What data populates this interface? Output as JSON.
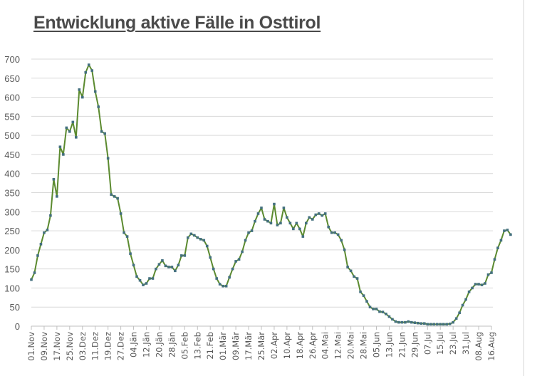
{
  "title": "Entwicklung aktive Fälle in Osttirol",
  "colors": {
    "line": "#5b8a2f",
    "marker": "#44707f",
    "grid": "#d9d9d9",
    "axis": "#bfbfbf",
    "text": "#595959"
  },
  "chart_data": {
    "type": "line",
    "title": "Entwicklung aktive Fälle in Osttirol",
    "xlabel": "",
    "ylabel": "",
    "ylim": [
      0,
      700
    ],
    "yticks": [
      0,
      50,
      100,
      150,
      200,
      250,
      300,
      350,
      400,
      450,
      500,
      550,
      600,
      650,
      700
    ],
    "grid": true,
    "legend": "none",
    "x_tick_labels": [
      "01.Nov",
      "09.Nov",
      "17.Nov",
      "25.Nov",
      "03.Dez",
      "11.Dez",
      "19.Dez",
      "27.Dez",
      "04.Jän",
      "12.Jän",
      "20.Jän",
      "28.Jän",
      "05.Feb",
      "13.Feb",
      "21.Feb",
      "01.Mär",
      "09.Mär",
      "17.Mär",
      "25.Mär",
      "02.Apr",
      "10.Apr",
      "18.Apr",
      "26.Apr",
      "04.Mai",
      "12.Mai",
      "20.Mai",
      "28.Mai",
      "05.Jun",
      "13.Jun",
      "21.Jun",
      "29.Jun",
      "07.Jul",
      "15.Jul",
      "23.Jul",
      "31.Jul",
      "08.Aug",
      "16.Aug"
    ],
    "x_tick_interval_days": 8,
    "series": [
      {
        "name": "Aktive Fälle",
        "day_step": 2,
        "start": "01.Nov",
        "values": [
          122,
          140,
          185,
          215,
          245,
          252,
          290,
          385,
          340,
          470,
          450,
          520,
          510,
          535,
          495,
          620,
          600,
          665,
          685,
          670,
          615,
          575,
          510,
          505,
          440,
          345,
          340,
          335,
          295,
          245,
          235,
          190,
          160,
          130,
          120,
          108,
          112,
          125,
          125,
          150,
          162,
          172,
          158,
          155,
          155,
          145,
          160,
          185,
          185,
          232,
          242,
          238,
          232,
          228,
          225,
          210,
          180,
          150,
          125,
          110,
          105,
          105,
          128,
          150,
          170,
          175,
          195,
          225,
          245,
          250,
          275,
          295,
          310,
          280,
          275,
          270,
          320,
          265,
          270,
          310,
          285,
          270,
          255,
          270,
          255,
          235,
          270,
          285,
          280,
          292,
          295,
          290,
          295,
          260,
          245,
          245,
          240,
          225,
          200,
          155,
          145,
          130,
          125,
          90,
          80,
          65,
          50,
          45,
          45,
          38,
          37,
          32,
          25,
          18,
          12,
          10,
          10,
          10,
          12,
          10,
          9,
          8,
          7,
          7,
          5,
          5,
          5,
          5,
          5,
          5,
          5,
          6,
          10,
          20,
          35,
          55,
          70,
          90,
          100,
          110,
          110,
          108,
          112,
          135,
          140,
          175,
          205,
          225,
          250,
          252,
          240
        ]
      }
    ]
  }
}
